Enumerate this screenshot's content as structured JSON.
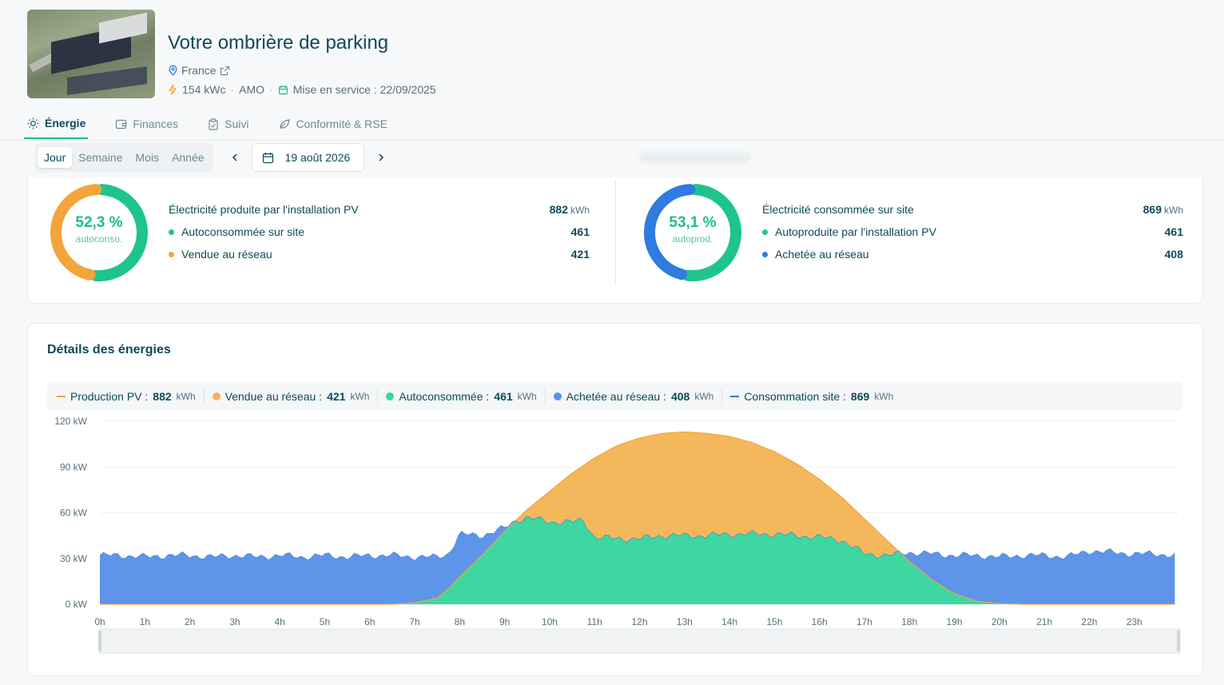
{
  "site": {
    "title": "Votre ombrière de parking",
    "location": "France",
    "power": "154 kWc",
    "role": "AMO",
    "commissioning": "Mise en service : 22/09/2025"
  },
  "tabs": [
    {
      "label": "Énergie",
      "icon": "sun-icon",
      "active": true
    },
    {
      "label": "Finances",
      "icon": "wallet-icon",
      "active": false
    },
    {
      "label": "Suivi",
      "icon": "clipboard-icon",
      "active": false
    },
    {
      "label": "Conformité & RSE",
      "icon": "leaf-icon",
      "active": false
    }
  ],
  "period": {
    "options": [
      "Jour",
      "Semaine",
      "Mois",
      "Année"
    ],
    "selected": "Jour",
    "date": "19 août 2026"
  },
  "summary": {
    "production": {
      "pct": "52,3 %",
      "pct_label": "autoconso.",
      "ratio": 0.523,
      "title": "Électricité produite par l'installation PV",
      "total": "882",
      "unit": "kWh",
      "rows": [
        {
          "label": "Autoconsommée sur site",
          "value": "461",
          "color": "#1fc48c"
        },
        {
          "label": "Vendue au réseau",
          "value": "421",
          "color": "#f3a43a"
        }
      ]
    },
    "consumption": {
      "pct": "53,1 %",
      "pct_label": "autoprod.",
      "ratio": 0.531,
      "title": "Électricité consommée sur site",
      "total": "869",
      "unit": "kWh",
      "rows": [
        {
          "label": "Autoproduite par l'installation PV",
          "value": "461",
          "color": "#1fc48c"
        },
        {
          "label": "Achetée au réseau",
          "value": "408",
          "color": "#2f7be0"
        }
      ]
    }
  },
  "details": {
    "title": "Détails des énergies",
    "legend": [
      {
        "label": "Production PV :",
        "value": "882",
        "unit": "kWh",
        "color": "#f3a43a",
        "marker": "line"
      },
      {
        "label": "Vendue au réseau :",
        "value": "421",
        "unit": "kWh",
        "color": "#f3b45a",
        "marker": "dot"
      },
      {
        "label": "Autoconsommée :",
        "value": "461",
        "unit": "kWh",
        "color": "#3fd4a0",
        "marker": "dot"
      },
      {
        "label": "Achetée au réseau :",
        "value": "408",
        "unit": "kWh",
        "color": "#5b93e6",
        "marker": "dot"
      },
      {
        "label": "Consommation site :",
        "value": "869",
        "unit": "kWh",
        "color": "#2f7be0",
        "marker": "line"
      }
    ]
  },
  "chart_data": {
    "type": "area",
    "ylim": [
      0,
      120
    ],
    "yticks": [
      "0 kW",
      "30 kW",
      "60 kW",
      "90 kW",
      "120 kW"
    ],
    "ytick_values": [
      0,
      30,
      60,
      90,
      120
    ],
    "xticks": [
      "0h",
      "1h",
      "2h",
      "3h",
      "4h",
      "5h",
      "6h",
      "7h",
      "8h",
      "9h",
      "10h",
      "11h",
      "12h",
      "13h",
      "14h",
      "15h",
      "16h",
      "17h",
      "18h",
      "19h",
      "20h",
      "21h",
      "22h",
      "23h"
    ],
    "x": [
      0,
      0.5,
      1,
      1.5,
      2,
      2.5,
      3,
      3.5,
      4,
      4.5,
      5,
      5.5,
      6,
      6.5,
      7,
      7.5,
      7.75,
      8,
      8.5,
      9,
      9.25,
      9.5,
      10,
      10.5,
      10.75,
      11,
      11.5,
      12,
      12.5,
      13,
      13.5,
      14,
      14.5,
      15,
      15.5,
      16,
      16.5,
      17,
      17.5,
      18,
      18.5,
      19,
      19.5,
      20,
      20.5,
      21,
      21.5,
      22,
      22.5,
      23,
      23.5,
      23.9
    ],
    "series": [
      {
        "name": "Production PV",
        "values": [
          0,
          0,
          0,
          0,
          0,
          0,
          0,
          0,
          0,
          0,
          0,
          0,
          0,
          0,
          1,
          4,
          10,
          18,
          32,
          48,
          55,
          62,
          74,
          86,
          91,
          96,
          104,
          109,
          112,
          113,
          112,
          110,
          106,
          100,
          92,
          82,
          70,
          56,
          42,
          28,
          16,
          7,
          2,
          0.5,
          0,
          0,
          0,
          0,
          0,
          0,
          0,
          0
        ]
      },
      {
        "name": "Consommation site",
        "values": [
          32,
          32,
          31,
          32,
          32,
          31,
          32,
          31,
          32,
          31,
          32,
          31,
          32,
          32,
          31,
          31,
          33,
          46,
          45,
          50,
          55,
          57,
          54,
          54,
          55,
          44,
          43,
          43,
          45,
          45,
          45,
          46,
          46,
          46,
          45,
          44,
          42,
          33,
          32,
          34,
          33,
          32,
          32,
          31,
          32,
          32,
          31,
          35,
          34,
          33,
          33,
          32
        ]
      }
    ]
  }
}
